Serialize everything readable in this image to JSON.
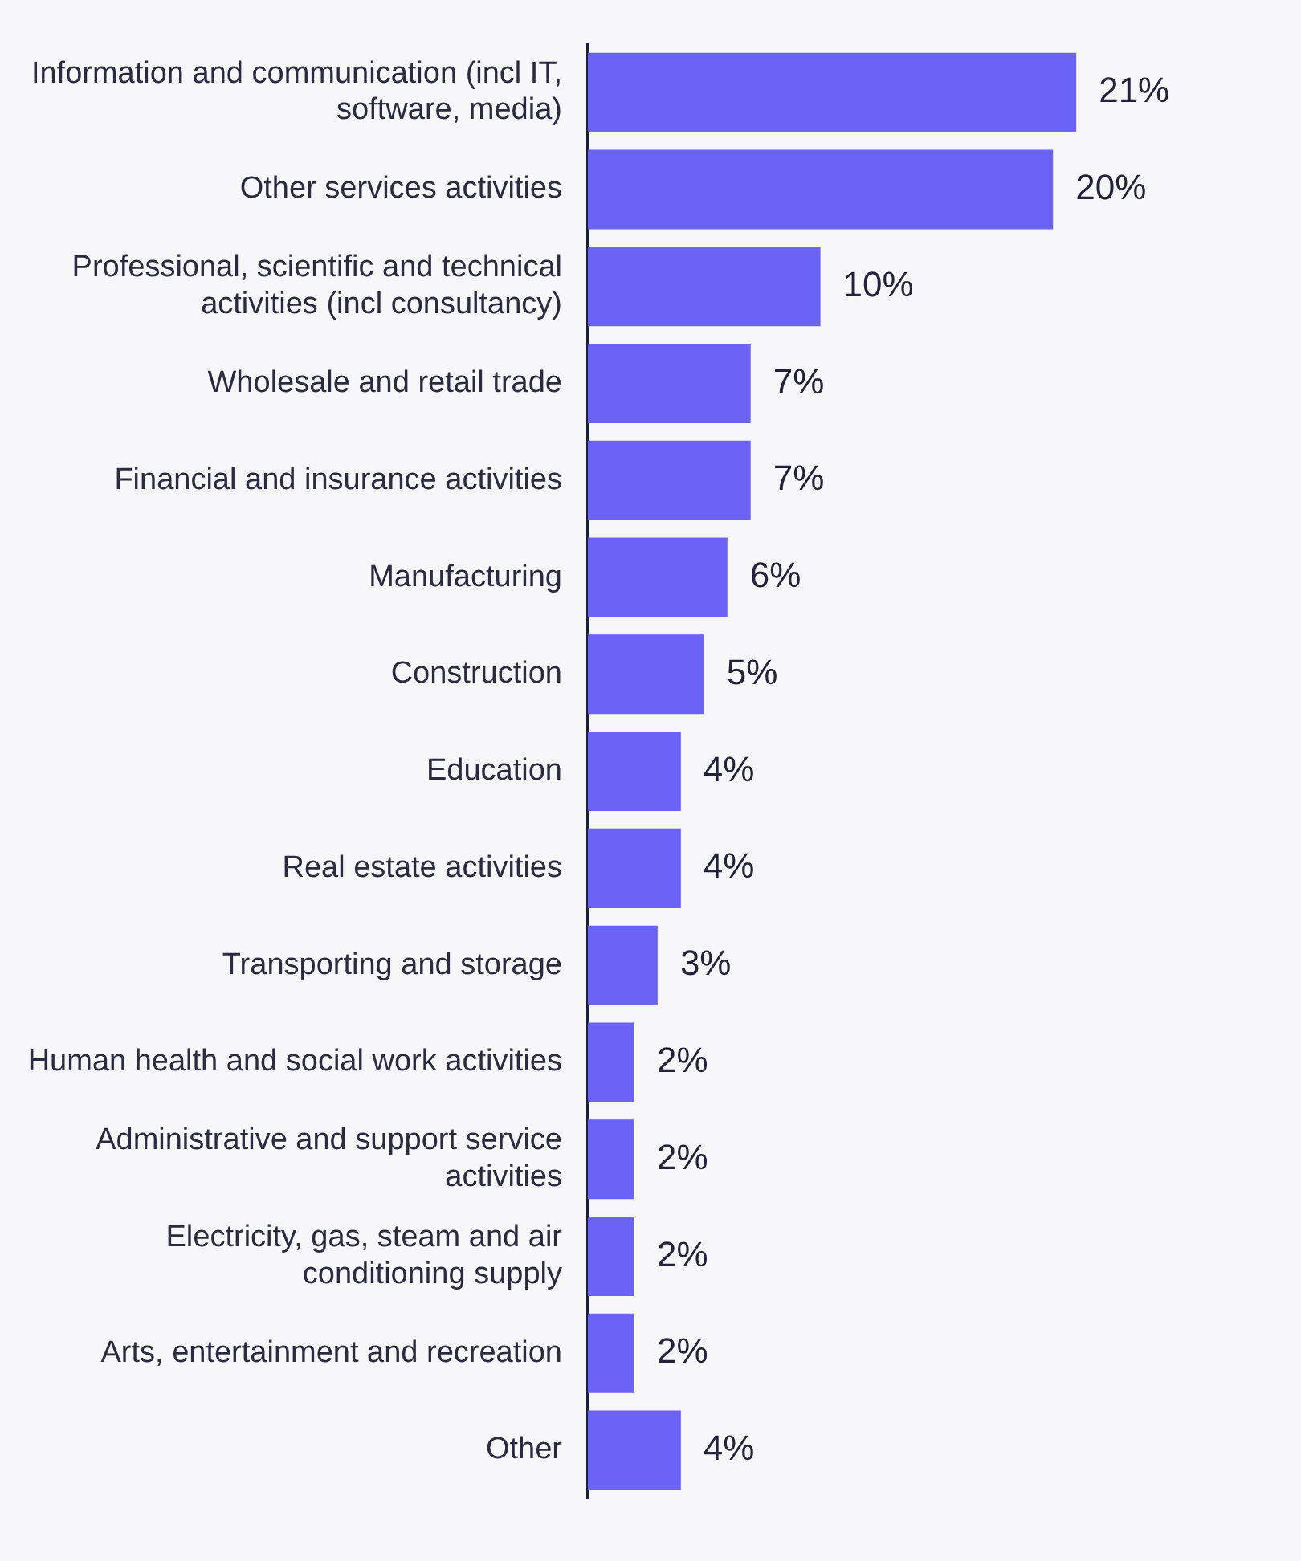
{
  "chart_data": {
    "type": "bar",
    "orientation": "horizontal",
    "categories": [
      "Information and communication (incl IT, software, media)",
      "Other services activities",
      "Professional, scientific and technical activities (incl consultancy)",
      "Wholesale and retail trade",
      "Financial and insurance activities",
      "Manufacturing",
      "Construction",
      "Education",
      "Real estate activities",
      "Transporting and storage",
      "Human health and social work activities",
      "Administrative and support service activities",
      "Electricity, gas, steam and air conditioning supply",
      "Arts, entertainment and recreation",
      "Other"
    ],
    "values": [
      21,
      20,
      10,
      7,
      7,
      6,
      5,
      4,
      4,
      3,
      2,
      2,
      2,
      2,
      4
    ],
    "value_labels": [
      "21%",
      "20%",
      "10%",
      "7%",
      "7%",
      "6%",
      "5%",
      "4%",
      "4%",
      "3%",
      "2%",
      "2%",
      "2%",
      "2%",
      "4%"
    ],
    "color": "#6a63f5",
    "grid": false,
    "legend": false
  }
}
